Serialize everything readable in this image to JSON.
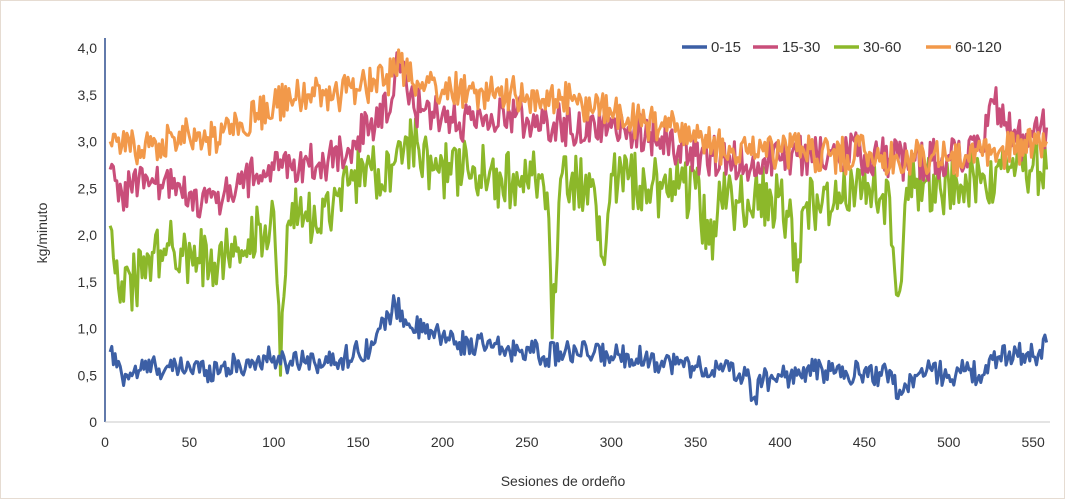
{
  "chart_data": {
    "type": "line",
    "title": "",
    "xlabel": "Sesiones de ordeño",
    "ylabel": "kg/minuto",
    "xlim": [
      0,
      560
    ],
    "ylim": [
      0,
      4
    ],
    "x_ticks": [
      0,
      50,
      100,
      150,
      200,
      250,
      300,
      350,
      400,
      450,
      500,
      550
    ],
    "x_tick_labels": [
      "0",
      "50",
      "100",
      "150",
      "200",
      "250",
      "300",
      "350",
      "400",
      "450",
      "500",
      "550"
    ],
    "y_ticks": [
      0,
      0.5,
      1,
      1.5,
      2,
      2.5,
      3,
      3.5,
      4
    ],
    "y_tick_labels": [
      "0",
      "0,5",
      "1,0",
      "1,5",
      "2,0",
      "2,5",
      "3,0",
      "3,5",
      "4,0"
    ],
    "grid": false,
    "legend_position": "top-right",
    "series": [
      {
        "name": "0-15",
        "color": "#3c5fa5",
        "x": [
          3,
          10,
          20,
          30,
          40,
          50,
          60,
          70,
          80,
          90,
          100,
          104,
          110,
          120,
          130,
          140,
          150,
          160,
          168,
          172,
          180,
          190,
          200,
          210,
          220,
          230,
          240,
          250,
          260,
          270,
          280,
          290,
          300,
          310,
          320,
          330,
          340,
          350,
          360,
          370,
          380,
          384,
          390,
          400,
          410,
          420,
          430,
          440,
          450,
          460,
          468,
          470,
          480,
          490,
          500,
          510,
          520,
          530,
          540,
          550,
          558
        ],
        "y": [
          0.75,
          0.5,
          0.55,
          0.6,
          0.55,
          0.6,
          0.55,
          0.6,
          0.6,
          0.65,
          0.7,
          0.62,
          0.65,
          0.7,
          0.62,
          0.68,
          0.75,
          0.85,
          1.15,
          1.25,
          1.05,
          0.95,
          0.92,
          0.85,
          0.82,
          0.8,
          0.75,
          0.8,
          0.7,
          0.75,
          0.72,
          0.75,
          0.7,
          0.72,
          0.68,
          0.65,
          0.62,
          0.6,
          0.55,
          0.55,
          0.5,
          0.25,
          0.45,
          0.5,
          0.5,
          0.55,
          0.55,
          0.5,
          0.55,
          0.5,
          0.5,
          0.25,
          0.5,
          0.55,
          0.5,
          0.55,
          0.5,
          0.7,
          0.75,
          0.7,
          0.85
        ]
      },
      {
        "name": "15-30",
        "color": "#c94e7a",
        "x": [
          3,
          10,
          20,
          30,
          40,
          50,
          60,
          70,
          80,
          90,
          100,
          110,
          120,
          130,
          140,
          150,
          160,
          170,
          173,
          180,
          190,
          200,
          210,
          220,
          230,
          240,
          250,
          260,
          270,
          280,
          290,
          300,
          310,
          320,
          330,
          340,
          350,
          360,
          370,
          380,
          390,
          400,
          410,
          420,
          430,
          440,
          450,
          460,
          470,
          480,
          490,
          500,
          510,
          520,
          525,
          530,
          540,
          550,
          558
        ],
        "y": [
          2.7,
          2.45,
          2.6,
          2.55,
          2.5,
          2.45,
          2.35,
          2.4,
          2.55,
          2.65,
          2.7,
          2.75,
          2.8,
          2.75,
          2.9,
          3.05,
          3.15,
          3.45,
          3.95,
          3.4,
          3.35,
          3.3,
          3.2,
          3.15,
          3.2,
          3.3,
          3.25,
          3.2,
          3.2,
          3.1,
          3.2,
          3.15,
          3.15,
          3.05,
          3.05,
          2.95,
          2.85,
          2.85,
          2.85,
          2.75,
          2.8,
          2.8,
          2.85,
          2.85,
          2.9,
          2.9,
          2.85,
          2.85,
          2.8,
          2.8,
          2.8,
          2.85,
          2.85,
          2.9,
          3.45,
          3.35,
          3.0,
          3.05,
          3.15
        ]
      },
      {
        "name": "30-60",
        "color": "#8cb82a",
        "x": [
          3,
          10,
          18,
          25,
          35,
          45,
          55,
          65,
          75,
          85,
          95,
          100,
          104,
          108,
          115,
          125,
          135,
          145,
          155,
          162,
          170,
          178,
          185,
          195,
          205,
          215,
          225,
          235,
          245,
          255,
          262,
          265,
          270,
          280,
          290,
          295,
          300,
          310,
          320,
          330,
          340,
          350,
          358,
          365,
          375,
          385,
          395,
          405,
          410,
          415,
          425,
          435,
          445,
          455,
          465,
          470,
          475,
          485,
          495,
          505,
          515,
          522,
          530,
          540,
          550,
          558
        ],
        "y": [
          2.1,
          1.5,
          1.5,
          1.8,
          1.85,
          1.85,
          1.75,
          1.7,
          1.9,
          1.95,
          2.1,
          2.25,
          0.5,
          2.1,
          2.25,
          2.1,
          2.3,
          2.55,
          2.75,
          2.7,
          2.75,
          3.05,
          3.0,
          2.7,
          2.65,
          2.7,
          2.65,
          2.6,
          2.55,
          2.6,
          2.45,
          0.9,
          2.6,
          2.55,
          2.5,
          1.75,
          2.65,
          2.6,
          2.55,
          2.5,
          2.5,
          2.5,
          1.9,
          2.4,
          2.35,
          2.45,
          2.4,
          2.2,
          1.5,
          2.3,
          2.35,
          2.45,
          2.5,
          2.5,
          2.4,
          1.35,
          2.5,
          2.55,
          2.5,
          2.55,
          2.6,
          2.5,
          2.8,
          2.75,
          2.75,
          2.7
        ]
      },
      {
        "name": "60-120",
        "color": "#f2994a",
        "x": [
          3,
          10,
          20,
          30,
          40,
          50,
          60,
          70,
          80,
          90,
          100,
          110,
          120,
          130,
          140,
          150,
          160,
          170,
          175,
          180,
          190,
          200,
          210,
          220,
          230,
          240,
          250,
          260,
          270,
          280,
          290,
          300,
          310,
          320,
          330,
          340,
          350,
          360,
          370,
          380,
          390,
          400,
          410,
          420,
          430,
          440,
          450,
          460,
          470,
          480,
          490,
          500,
          510,
          520,
          530,
          540,
          550,
          558
        ],
        "y": [
          3.0,
          2.95,
          2.95,
          3.0,
          3.05,
          3.05,
          3.0,
          3.1,
          3.2,
          3.3,
          3.4,
          3.45,
          3.5,
          3.5,
          3.5,
          3.55,
          3.65,
          3.7,
          3.85,
          3.65,
          3.6,
          3.55,
          3.55,
          3.55,
          3.5,
          3.5,
          3.5,
          3.45,
          3.45,
          3.4,
          3.35,
          3.3,
          3.25,
          3.2,
          3.2,
          3.1,
          3.0,
          2.95,
          2.95,
          2.9,
          2.9,
          2.9,
          2.9,
          2.85,
          2.85,
          2.85,
          2.9,
          2.85,
          2.8,
          2.85,
          2.85,
          2.8,
          2.85,
          2.85,
          2.9,
          2.9,
          2.95,
          3.0
        ]
      }
    ]
  }
}
